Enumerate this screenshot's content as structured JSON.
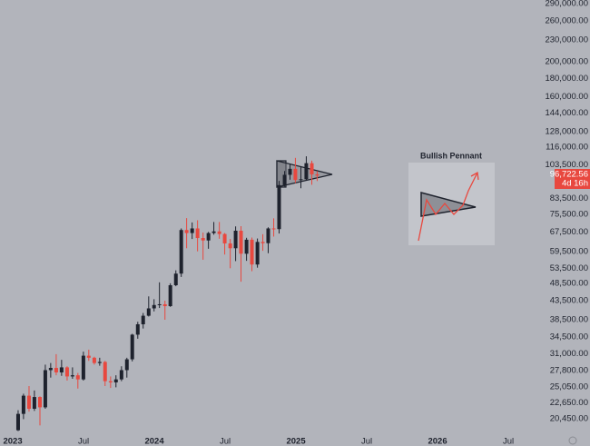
{
  "chart_data": {
    "type": "candlestick",
    "annotation": "Bullish Pennant",
    "price_label": "96,722.56",
    "countdown_label": "4d 16h",
    "up_color": "#1e222d",
    "down_color": "#e8483f",
    "log": true,
    "x": [
      2023.038,
      2023.076,
      2023.115,
      2023.153,
      2023.192,
      2023.23,
      2023.268,
      2023.307,
      2023.345,
      2023.384,
      2023.422,
      2023.46,
      2023.499,
      2023.537,
      2023.576,
      2023.614,
      2023.652,
      2023.691,
      2023.729,
      2023.768,
      2023.806,
      2023.844,
      2023.883,
      2023.921,
      2023.96,
      2023.998,
      2024.036,
      2024.075,
      2024.113,
      2024.152,
      2024.19,
      2024.228,
      2024.267,
      2024.305,
      2024.344,
      2024.382,
      2024.42,
      2024.459,
      2024.497,
      2024.536,
      2024.574,
      2024.612,
      2024.651,
      2024.689,
      2024.728,
      2024.766,
      2024.804,
      2024.843,
      2024.881,
      2024.92,
      2024.958,
      2024.996,
      2025.035,
      2025.073,
      2025.112,
      2025.15
    ],
    "open": [
      19000,
      21100,
      23700,
      21800,
      23500,
      22000,
      27900,
      28300,
      27500,
      28400,
      26800,
      27000,
      26300,
      30600,
      30200,
      29200,
      29400,
      26000,
      25800,
      26300,
      27900,
      29900,
      35000,
      37400,
      39500,
      41400,
      42300,
      42500,
      42000,
      48000,
      51700,
      68300,
      67000,
      69000,
      64900,
      63900,
      67000,
      67700,
      66600,
      62700,
      60800,
      68000,
      58700,
      64200,
      54800,
      63300,
      62800,
      69000,
      68700,
      91000,
      97200,
      101000,
      94000,
      94500,
      104700,
      97500
    ],
    "high": [
      21600,
      24000,
      25200,
      24500,
      23600,
      28900,
      29200,
      30900,
      29800,
      28600,
      28400,
      27400,
      31400,
      31800,
      30400,
      30200,
      29600,
      26800,
      27000,
      28600,
      30200,
      35200,
      38000,
      40200,
      44700,
      43900,
      48900,
      43500,
      48600,
      52800,
      69000,
      73700,
      71700,
      72700,
      67200,
      67500,
      71900,
      71900,
      67000,
      64500,
      69900,
      70000,
      65000,
      65100,
      64700,
      66500,
      69500,
      73600,
      93500,
      99600,
      104000,
      108300,
      102700,
      109400,
      106400,
      99500
    ],
    "low": [
      18900,
      20400,
      21400,
      21500,
      19600,
      21800,
      26600,
      27000,
      26900,
      26100,
      26400,
      24800,
      26100,
      29600,
      28900,
      28700,
      25200,
      24900,
      25000,
      26000,
      26600,
      29500,
      34100,
      36400,
      39300,
      40600,
      41500,
      38500,
      41800,
      47700,
      50600,
      60800,
      64500,
      59600,
      56500,
      60600,
      66300,
      64600,
      58400,
      53500,
      56000,
      49100,
      56100,
      52500,
      53700,
      59800,
      58900,
      65500,
      66800,
      90200,
      94200,
      92200,
      89200,
      94100,
      91200,
      93400
    ],
    "close": [
      21100,
      23700,
      21800,
      23500,
      22000,
      27900,
      28300,
      27500,
      28400,
      26800,
      27000,
      26300,
      30600,
      30200,
      29200,
      29400,
      26000,
      25800,
      26300,
      27900,
      29900,
      35000,
      37400,
      39500,
      41400,
      42300,
      42500,
      42000,
      48000,
      51700,
      68300,
      67000,
      69000,
      64900,
      63900,
      67000,
      67700,
      66600,
      62700,
      60800,
      68000,
      58700,
      64200,
      54800,
      63300,
      62800,
      69000,
      68700,
      91000,
      97200,
      101000,
      94000,
      94500,
      104700,
      97500,
      96700
    ],
    "xlim": [
      2022.91,
      2026.833
    ],
    "xticks": [
      2023,
      {
        "value": 2023.5,
        "label": "Jul"
      },
      2024,
      {
        "value": 2024.5,
        "label": "Jul"
      },
      2025,
      {
        "value": 2025.5,
        "label": "Jul"
      },
      2026,
      {
        "value": 2026.5,
        "label": "Jul"
      }
    ],
    "ylim": [
      18530,
      297000
    ],
    "yticks": [
      {
        "value": 290000,
        "label": "290,000.00"
      },
      {
        "value": 260000,
        "label": "260,000.00"
      },
      {
        "value": 230000,
        "label": "230,000.00"
      },
      {
        "value": 200000,
        "label": "200,000.00"
      },
      {
        "value": 180000,
        "label": "180,000.00"
      },
      {
        "value": 160000,
        "label": "160,000.00"
      },
      {
        "value": 144000,
        "label": "144,000.00"
      },
      {
        "value": 128000,
        "label": "128,000.00"
      },
      {
        "value": 116000,
        "label": "116,000.00"
      },
      {
        "value": 103500,
        "label": "103,500.00"
      },
      {
        "value": 83500,
        "label": "83,500.00"
      },
      {
        "value": 75500,
        "label": "75,500.00"
      },
      {
        "value": 67500,
        "label": "67,500.00"
      },
      {
        "value": 59500,
        "label": "59,500.00"
      },
      {
        "value": 53500,
        "label": "53,500.00"
      },
      {
        "value": 48500,
        "label": "48,500.00"
      },
      {
        "value": 43500,
        "label": "43,500.00"
      },
      {
        "value": 38500,
        "label": "38,500.00"
      },
      {
        "value": 34500,
        "label": "34,500.00"
      },
      {
        "value": 31000,
        "label": "31,000.00"
      },
      {
        "value": 27800,
        "label": "27,800.00"
      },
      {
        "value": 25050,
        "label": "25,050.00"
      },
      {
        "value": 22650,
        "label": "22,650.00"
      },
      {
        "value": 20450,
        "label": "20,450.00"
      }
    ]
  }
}
